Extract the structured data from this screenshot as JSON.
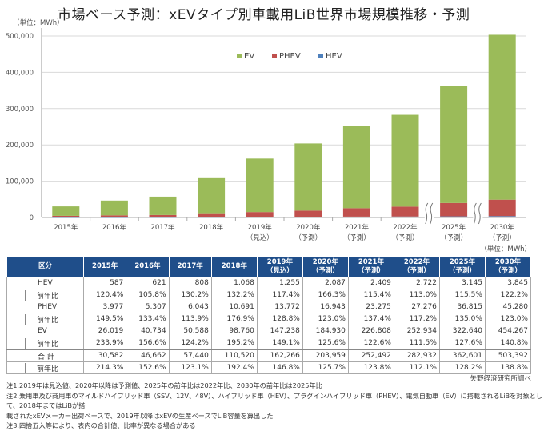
{
  "title": "市場ベース予測：xEVタイプ別車載用LiB世界市場規模推移・予測",
  "unit_top": "（単位：MWh）",
  "unit_table": "（単位：MWh）",
  "source": "矢野経済研究所調べ",
  "colors": {
    "EV": "#9bbb59",
    "PHEV": "#c0504d",
    "HEV": "#4f81bd",
    "header": "#1f4e8a"
  },
  "chart_data": {
    "type": "bar",
    "stacked": true,
    "title": "市場ベース予測：xEVタイプ別車載用LiB世界市場規模推移・予測",
    "ylabel": "（単位：MWh）",
    "ylim": [
      0,
      500000
    ],
    "yticks": [
      0,
      100000,
      200000,
      300000,
      400000,
      500000
    ],
    "ytick_labels": [
      "0",
      "100,000",
      "200,000",
      "300,000",
      "400,000",
      "500,000"
    ],
    "grid": true,
    "legend_position": "top-center",
    "categories": [
      "2015年",
      "2016年",
      "2017年",
      "2018年",
      "2019年",
      "2020年",
      "2021年",
      "2022年",
      "2025年",
      "2030年"
    ],
    "category_sublabels": [
      "",
      "",
      "",
      "",
      "（見込）",
      "（予測）",
      "（予測）",
      "（予測）",
      "（予測）",
      "（予測）"
    ],
    "axis_breaks_before": [
      "2025年",
      "2030年"
    ],
    "series": [
      {
        "name": "HEV",
        "values": [
          587,
          621,
          808,
          1068,
          1255,
          2087,
          2409,
          2722,
          3145,
          3845
        ]
      },
      {
        "name": "PHEV",
        "values": [
          3977,
          5307,
          6043,
          10691,
          13772,
          16943,
          23275,
          27276,
          36815,
          45280
        ]
      },
      {
        "name": "EV",
        "values": [
          26019,
          40734,
          50588,
          98760,
          147238,
          184930,
          226808,
          252934,
          322640,
          454267
        ]
      }
    ],
    "legend": [
      "EV",
      "PHEV",
      "HEV"
    ]
  },
  "table": {
    "header_cat": "区分",
    "columns": [
      {
        "year": "2015年",
        "note": ""
      },
      {
        "year": "2016年",
        "note": ""
      },
      {
        "year": "2017年",
        "note": ""
      },
      {
        "year": "2018年",
        "note": ""
      },
      {
        "year": "2019年",
        "note": "（見込）"
      },
      {
        "year": "2020年",
        "note": "（予測）"
      },
      {
        "year": "2021年",
        "note": "（予測）"
      },
      {
        "year": "2022年",
        "note": "（予測）"
      },
      {
        "year": "2025年",
        "note": "（予測）"
      },
      {
        "year": "2030年",
        "note": "（予測）"
      }
    ],
    "rows": [
      {
        "label": "HEV",
        "values": [
          "587",
          "621",
          "808",
          "1,068",
          "1,255",
          "2,087",
          "2,409",
          "2,722",
          "3,145",
          "3,845"
        ],
        "yoy_label": "前年比",
        "yoy": [
          "120.4%",
          "105.8%",
          "130.2%",
          "132.2%",
          "117.4%",
          "166.3%",
          "115.4%",
          "113.0%",
          "115.5%",
          "122.2%"
        ]
      },
      {
        "label": "PHEV",
        "values": [
          "3,977",
          "5,307",
          "6,043",
          "10,691",
          "13,772",
          "16,943",
          "23,275",
          "27,276",
          "36,815",
          "45,280"
        ],
        "yoy_label": "前年比",
        "yoy": [
          "149.5%",
          "133.4%",
          "113.9%",
          "176.9%",
          "128.8%",
          "123.0%",
          "137.4%",
          "117.2%",
          "135.0%",
          "123.0%"
        ]
      },
      {
        "label": "EV",
        "values": [
          "26,019",
          "40,734",
          "50,588",
          "98,760",
          "147,238",
          "184,930",
          "226,808",
          "252,934",
          "322,640",
          "454,267"
        ],
        "yoy_label": "前年比",
        "yoy": [
          "233.9%",
          "156.6%",
          "124.2%",
          "195.2%",
          "149.1%",
          "125.6%",
          "122.6%",
          "111.5%",
          "127.6%",
          "140.8%"
        ]
      },
      {
        "label": "合 計",
        "values": [
          "30,582",
          "46,662",
          "57,440",
          "110,520",
          "162,266",
          "203,959",
          "252,492",
          "282,932",
          "362,601",
          "503,392"
        ],
        "yoy_label": "前年比",
        "yoy": [
          "214.3%",
          "152.6%",
          "123.1%",
          "192.4%",
          "146.8%",
          "125.7%",
          "123.8%",
          "112.1%",
          "128.2%",
          "138.8%"
        ]
      }
    ]
  },
  "notes": [
    "注1.2019年は見込値、2020年以降は予測値、2025年の前年比は2022年比、2030年の前年比は2025年比",
    "注2.乗用車及び商用車のマイルドハイブリッド車（SSV、12V、48V）、ハイブリッド車（HEV）、プラグインハイブリッド車（PHEV）、電気自動車（EV）に搭載されるLiBを対象として、2018年まではLiBが搭",
    "載されたxEVメーカー出荷ベースで、2019年以降はxEVの生産ベースでLiB容量を算出した",
    "注3.四捨五入等により、表内の合計値、比率が異なる場合がある"
  ]
}
